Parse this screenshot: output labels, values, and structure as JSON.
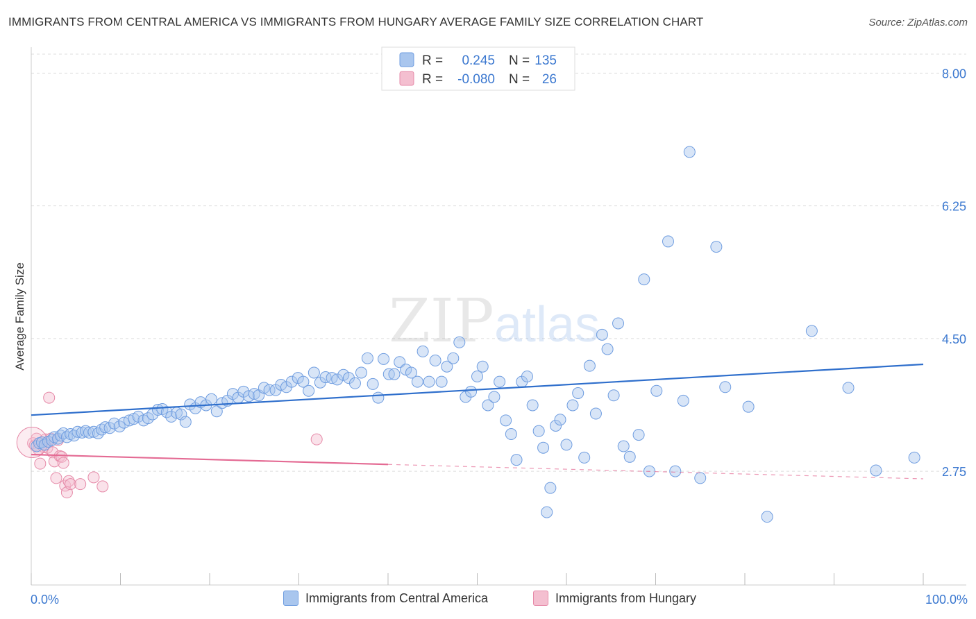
{
  "title": "IMMIGRANTS FROM CENTRAL AMERICA VS IMMIGRANTS FROM HUNGARY AVERAGE FAMILY SIZE CORRELATION CHART",
  "source": "Source: ZipAtlas.com",
  "watermark": {
    "zip": "ZIP",
    "atlas": "atlas"
  },
  "colors": {
    "blue": "#6f9de0",
    "blue_fill": "#a9c6ee",
    "blue_line": "#2f6fcc",
    "pink": "#e68aa8",
    "pink_fill": "#f4bfd0",
    "pink_line": "#e46b94",
    "axis_text": "#3b78d0",
    "grid": "#dddddd"
  },
  "legend_top": [
    {
      "r_label": "R =",
      "r_value": "0.245",
      "n_label": "N =",
      "n_value": "135"
    },
    {
      "r_label": "R =",
      "r_value": "-0.080",
      "n_label": "N =",
      "n_value": "26"
    }
  ],
  "legend_bottom": [
    "Immigrants from Central America",
    "Immigrants from Hungary"
  ],
  "chart_data": {
    "type": "scatter",
    "xlabel": "",
    "ylabel": "Average Family Size",
    "xlim": [
      0,
      100
    ],
    "ylim": [
      1.25,
      8.25
    ],
    "x_tick_labels": [
      "0.0%",
      "100.0%"
    ],
    "y_ticks": [
      2.75,
      4.5,
      6.25,
      8.0
    ],
    "y_tick_labels": [
      "2.75",
      "4.50",
      "6.25",
      "8.00"
    ],
    "grid": true,
    "legend_position": "top-center",
    "series": [
      {
        "name": "Immigrants from Central America",
        "trend": {
          "x0": 0,
          "y0": 3.49,
          "x1": 100,
          "y1": 4.16
        },
        "points": [
          [
            0.6,
            3.08
          ],
          [
            0.9,
            3.12
          ],
          [
            1.2,
            3.13
          ],
          [
            1.5,
            3.1
          ],
          [
            1.9,
            3.14
          ],
          [
            2.3,
            3.16
          ],
          [
            2.6,
            3.2
          ],
          [
            3.0,
            3.18
          ],
          [
            3.3,
            3.22
          ],
          [
            3.6,
            3.25
          ],
          [
            4.0,
            3.2
          ],
          [
            4.4,
            3.24
          ],
          [
            4.8,
            3.22
          ],
          [
            5.2,
            3.27
          ],
          [
            5.7,
            3.26
          ],
          [
            6.1,
            3.28
          ],
          [
            6.5,
            3.26
          ],
          [
            7.0,
            3.27
          ],
          [
            7.5,
            3.25
          ],
          [
            7.9,
            3.3
          ],
          [
            8.3,
            3.33
          ],
          [
            8.8,
            3.32
          ],
          [
            9.3,
            3.38
          ],
          [
            9.9,
            3.34
          ],
          [
            10.4,
            3.39
          ],
          [
            11.0,
            3.42
          ],
          [
            11.5,
            3.44
          ],
          [
            12.0,
            3.47
          ],
          [
            12.6,
            3.42
          ],
          [
            13.1,
            3.45
          ],
          [
            13.6,
            3.5
          ],
          [
            14.2,
            3.56
          ],
          [
            14.7,
            3.57
          ],
          [
            15.2,
            3.53
          ],
          [
            15.7,
            3.47
          ],
          [
            16.3,
            3.52
          ],
          [
            16.8,
            3.5
          ],
          [
            17.3,
            3.4
          ],
          [
            17.8,
            3.63
          ],
          [
            18.4,
            3.58
          ],
          [
            19.0,
            3.66
          ],
          [
            19.6,
            3.62
          ],
          [
            20.2,
            3.7
          ],
          [
            20.8,
            3.54
          ],
          [
            21.4,
            3.65
          ],
          [
            22.0,
            3.68
          ],
          [
            22.6,
            3.77
          ],
          [
            23.2,
            3.72
          ],
          [
            23.8,
            3.8
          ],
          [
            24.4,
            3.74
          ],
          [
            25.0,
            3.77
          ],
          [
            25.5,
            3.75
          ],
          [
            26.1,
            3.85
          ],
          [
            26.7,
            3.82
          ],
          [
            27.4,
            3.82
          ],
          [
            28.0,
            3.89
          ],
          [
            28.6,
            3.86
          ],
          [
            29.2,
            3.93
          ],
          [
            29.9,
            3.98
          ],
          [
            30.5,
            3.93
          ],
          [
            31.1,
            3.81
          ],
          [
            31.7,
            4.05
          ],
          [
            32.4,
            3.92
          ],
          [
            33.0,
            3.99
          ],
          [
            33.7,
            3.98
          ],
          [
            34.3,
            3.96
          ],
          [
            35.0,
            4.02
          ],
          [
            35.6,
            3.98
          ],
          [
            36.3,
            3.91
          ],
          [
            37.0,
            4.05
          ],
          [
            37.7,
            4.24
          ],
          [
            38.3,
            3.9
          ],
          [
            38.9,
            3.72
          ],
          [
            39.5,
            4.23
          ],
          [
            40.1,
            4.03
          ],
          [
            40.7,
            4.03
          ],
          [
            41.3,
            4.19
          ],
          [
            42.0,
            4.09
          ],
          [
            42.6,
            4.05
          ],
          [
            43.3,
            3.93
          ],
          [
            43.9,
            4.33
          ],
          [
            44.6,
            3.93
          ],
          [
            45.3,
            4.21
          ],
          [
            46.0,
            3.93
          ],
          [
            46.6,
            4.13
          ],
          [
            47.3,
            4.24
          ],
          [
            48.0,
            4.45
          ],
          [
            48.7,
            3.73
          ],
          [
            49.3,
            3.8
          ],
          [
            50.0,
            4.0
          ],
          [
            50.6,
            4.13
          ],
          [
            51.2,
            3.62
          ],
          [
            51.9,
            3.73
          ],
          [
            52.5,
            3.93
          ],
          [
            53.2,
            3.42
          ],
          [
            53.8,
            3.24
          ],
          [
            54.4,
            2.9
          ],
          [
            55.0,
            3.93
          ],
          [
            55.6,
            4.0
          ],
          [
            56.2,
            3.62
          ],
          [
            56.9,
            3.28
          ],
          [
            57.4,
            3.06
          ],
          [
            57.8,
            2.21
          ],
          [
            58.2,
            2.53
          ],
          [
            58.8,
            3.35
          ],
          [
            59.3,
            3.43
          ],
          [
            60.0,
            3.1
          ],
          [
            60.7,
            3.62
          ],
          [
            61.3,
            3.78
          ],
          [
            62.0,
            2.93
          ],
          [
            62.6,
            4.14
          ],
          [
            63.3,
            3.51
          ],
          [
            64.0,
            4.55
          ],
          [
            64.6,
            4.36
          ],
          [
            65.3,
            3.75
          ],
          [
            65.8,
            4.7
          ],
          [
            66.4,
            3.08
          ],
          [
            67.1,
            2.94
          ],
          [
            68.1,
            3.23
          ],
          [
            68.7,
            5.28
          ],
          [
            69.3,
            2.75
          ],
          [
            70.1,
            3.81
          ],
          [
            71.4,
            5.78
          ],
          [
            72.2,
            2.75
          ],
          [
            73.1,
            3.68
          ],
          [
            73.8,
            6.96
          ],
          [
            75.0,
            2.66
          ],
          [
            76.8,
            5.71
          ],
          [
            77.8,
            3.86
          ],
          [
            80.4,
            3.6
          ],
          [
            82.5,
            2.15
          ],
          [
            87.5,
            4.6
          ],
          [
            91.6,
            3.85
          ],
          [
            94.7,
            2.76
          ],
          [
            99.0,
            2.93
          ]
        ]
      },
      {
        "name": "Immigrants from Hungary",
        "trend": {
          "x0": 0,
          "y0": 2.97,
          "x1": 40,
          "y1": 2.84,
          "x_dash_end": 100,
          "y_dash_end": 2.65
        },
        "points": [
          [
            0.2,
            3.12
          ],
          [
            0.4,
            3.09
          ],
          [
            0.6,
            3.18
          ],
          [
            0.8,
            3.04
          ],
          [
            1.0,
            2.85
          ],
          [
            1.2,
            3.13
          ],
          [
            1.4,
            3.07
          ],
          [
            1.6,
            3.17
          ],
          [
            1.8,
            3.06
          ],
          [
            2.0,
            3.72
          ],
          [
            2.2,
            3.18
          ],
          [
            2.4,
            3.0
          ],
          [
            2.6,
            2.88
          ],
          [
            2.8,
            2.66
          ],
          [
            3.0,
            3.16
          ],
          [
            3.2,
            2.95
          ],
          [
            3.4,
            2.94
          ],
          [
            3.6,
            2.86
          ],
          [
            3.8,
            2.56
          ],
          [
            4.0,
            2.47
          ],
          [
            4.2,
            2.62
          ],
          [
            4.4,
            2.58
          ],
          [
            5.5,
            2.58
          ],
          [
            7.0,
            2.67
          ],
          [
            8.0,
            2.55
          ],
          [
            32.0,
            3.17
          ]
        ]
      }
    ]
  }
}
